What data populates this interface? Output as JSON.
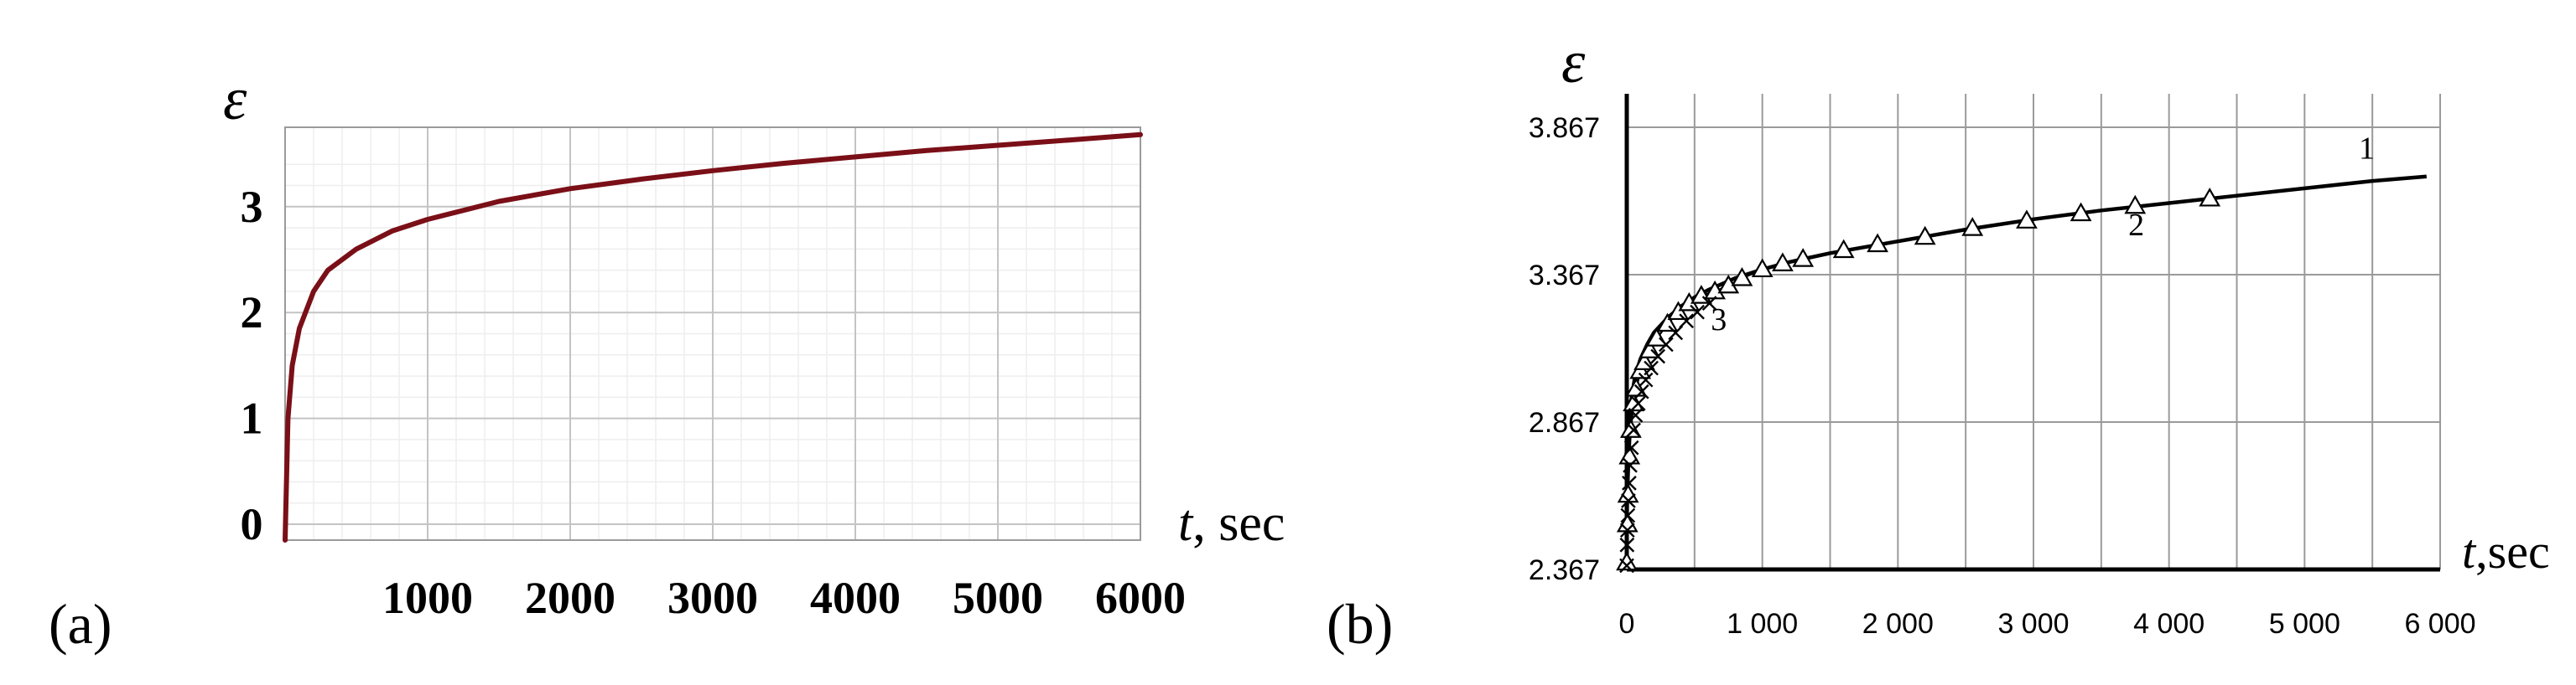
{
  "chart_data": [
    {
      "panel": "(a)",
      "type": "line",
      "title": "",
      "ylabel": "ε",
      "xlabel_var": "t",
      "xlabel_unit": ", sec",
      "xlim": [
        0,
        6000
      ],
      "ylim": [
        -0.15,
        3.75
      ],
      "xticks": [
        {
          "value": 1000,
          "label": "1000"
        },
        {
          "value": 2000,
          "label": "2000"
        },
        {
          "value": 3000,
          "label": "3000"
        },
        {
          "value": 4000,
          "label": "4000"
        },
        {
          "value": 5000,
          "label": "5000"
        },
        {
          "value": 6000,
          "label": "6000"
        }
      ],
      "yticks": [
        {
          "value": 0,
          "label": "0"
        },
        {
          "value": 1,
          "label": "1"
        },
        {
          "value": 2,
          "label": "2"
        },
        {
          "value": 3,
          "label": "3"
        }
      ],
      "grid": true,
      "line_color": "#7a0f17",
      "series": [
        {
          "x": [
            0,
            20,
            50,
            100,
            200,
            300,
            500,
            750,
            1000,
            1500,
            2000,
            2500,
            3000,
            3500,
            4000,
            4500,
            5000,
            5500,
            6000
          ],
          "y": [
            -0.15,
            1.0,
            1.5,
            1.85,
            2.2,
            2.4,
            2.6,
            2.77,
            2.88,
            3.05,
            3.17,
            3.26,
            3.34,
            3.41,
            3.47,
            3.53,
            3.58,
            3.63,
            3.68
          ]
        }
      ]
    },
    {
      "panel": "(b)",
      "type": "line",
      "title": "",
      "ylabel": "ε",
      "xlabel_var": "t",
      "xlabel_unit": ",sec",
      "xlim": [
        0,
        6000
      ],
      "ylim": [
        2.367,
        3.867
      ],
      "xticks": [
        {
          "value": 0,
          "label": "0"
        },
        {
          "value": 1000,
          "label": "1 000"
        },
        {
          "value": 2000,
          "label": "2 000"
        },
        {
          "value": 3000,
          "label": "3 000"
        },
        {
          "value": 4000,
          "label": "4 000"
        },
        {
          "value": 5000,
          "label": "5 000"
        },
        {
          "value": 6000,
          "label": "6 000"
        }
      ],
      "yticks": [
        {
          "value": 2.367,
          "label": "2.367"
        },
        {
          "value": 2.867,
          "label": "2.867"
        },
        {
          "value": 3.367,
          "label": "3.367"
        },
        {
          "value": 3.867,
          "label": "3.867"
        }
      ],
      "grid": true,
      "series": [
        {
          "name": "1",
          "marker": "none",
          "x": [
            0,
            5,
            15,
            30,
            60,
            100,
            150,
            200,
            300,
            400,
            500,
            600,
            800,
            1000,
            1200,
            1500,
            2000,
            2500,
            3000,
            3500,
            4000,
            4500,
            5000,
            5500,
            5900
          ],
          "y": [
            2.45,
            2.7,
            2.84,
            2.93,
            3.02,
            3.08,
            3.13,
            3.17,
            3.22,
            3.26,
            3.29,
            3.315,
            3.355,
            3.385,
            3.41,
            3.44,
            3.48,
            3.52,
            3.555,
            3.585,
            3.61,
            3.635,
            3.66,
            3.685,
            3.7
          ]
        },
        {
          "name": "2",
          "marker": "triangle",
          "x": [
            0,
            5,
            10,
            20,
            30,
            50,
            70,
            100,
            130,
            170,
            220,
            300,
            380,
            460,
            550,
            650,
            750,
            850,
            1000,
            1150,
            1300,
            1600,
            1850,
            2200,
            2550,
            2950,
            3350,
            3750,
            4300
          ],
          "y": [
            2.39,
            2.52,
            2.62,
            2.75,
            2.84,
            2.93,
            2.98,
            3.04,
            3.07,
            3.11,
            3.15,
            3.2,
            3.24,
            3.27,
            3.295,
            3.31,
            3.33,
            3.355,
            3.385,
            3.405,
            3.42,
            3.45,
            3.47,
            3.495,
            3.525,
            3.55,
            3.575,
            3.6,
            3.625
          ]
        },
        {
          "name": "3",
          "marker": "x",
          "x": [
            0,
            2,
            5,
            8,
            12,
            18,
            25,
            35,
            50,
            65,
            85,
            110,
            140,
            180,
            230,
            290,
            360,
            440,
            520,
            610
          ],
          "y": [
            2.38,
            2.45,
            2.5,
            2.55,
            2.6,
            2.66,
            2.72,
            2.78,
            2.84,
            2.89,
            2.93,
            2.97,
            3.01,
            3.05,
            3.09,
            3.13,
            3.17,
            3.21,
            3.24,
            3.27
          ]
        }
      ]
    }
  ]
}
